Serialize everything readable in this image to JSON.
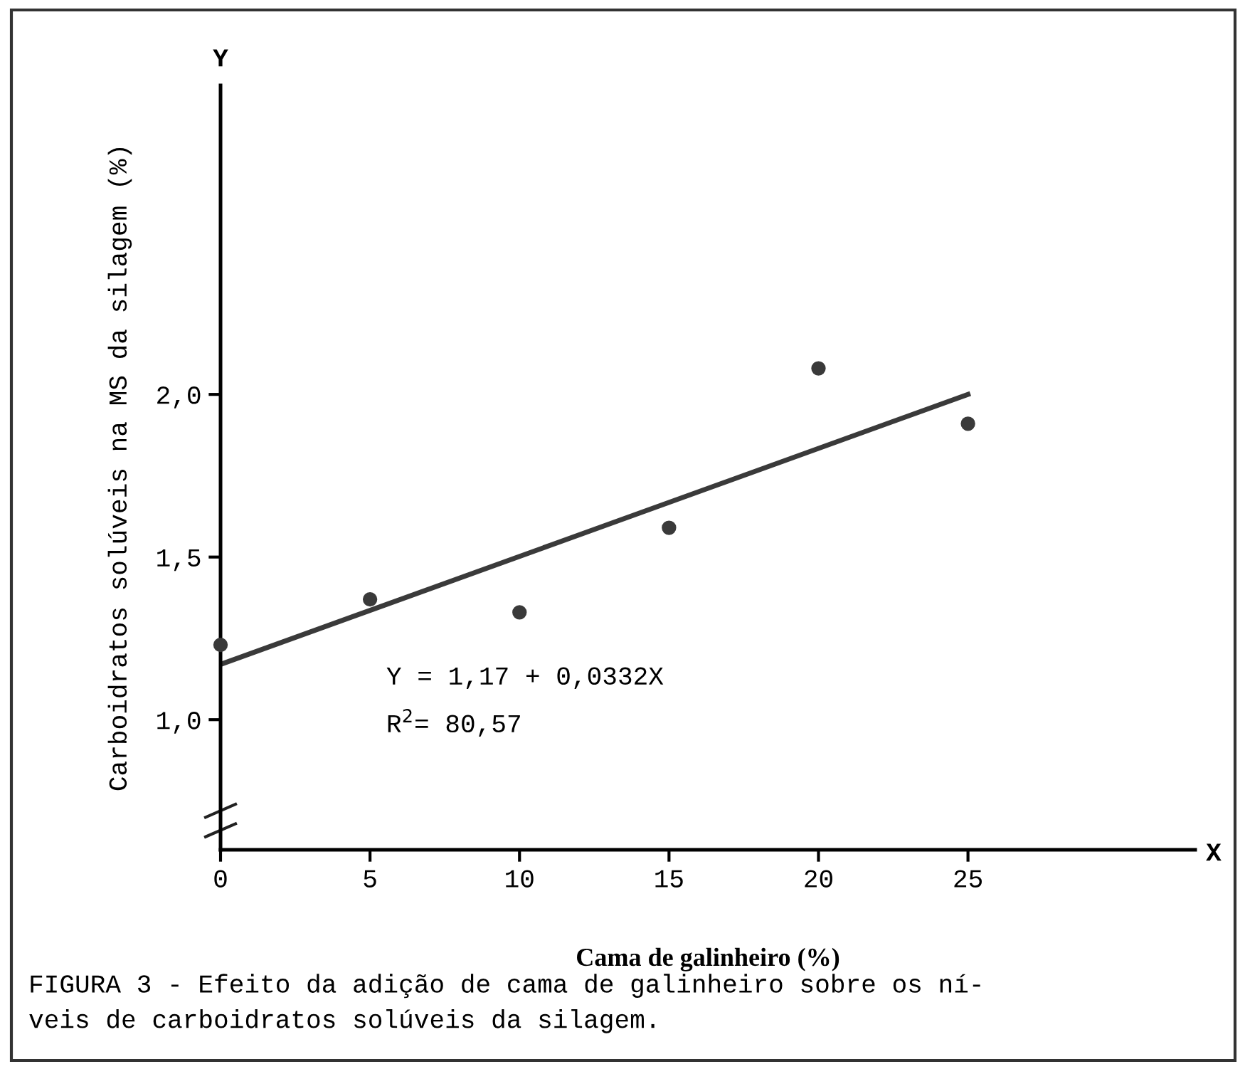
{
  "chart_data": {
    "type": "scatter",
    "xlabel": "Cama de galinheiro (%)",
    "ylabel": "Carboidratos solúveis na MS da silagem (%)",
    "series": [
      {
        "color": "#3a3a3a",
        "x": [
          0,
          5,
          10,
          15,
          20,
          25
        ],
        "values": [
          1.23,
          1.37,
          1.33,
          1.59,
          2.08,
          1.91
        ],
        "marker": "circle"
      },
      {
        "type": "line",
        "color": "#3a3a3a",
        "x": [
          0,
          25
        ],
        "values": [
          1.17,
          2.0
        ],
        "line_style": "solid"
      }
    ],
    "xlim": [
      0,
      32.6
    ],
    "ylim": [
      0.6,
      2.95
    ],
    "xticks": [
      0,
      5,
      10,
      15,
      20,
      25
    ],
    "yticks": [
      {
        "value": 1.0,
        "label": "1,0"
      },
      {
        "value": 1.5,
        "label": "1,5"
      },
      {
        "value": 2.0,
        "label": "2,0"
      }
    ],
    "grid": false,
    "legend": false,
    "annotations": [
      "Y = 1,17 + 0,0332X",
      "R$^{2}$= 80,57",
      "Y",
      "X",
      "FIGURA 3 - Efeito da adição de cama de galinheiro sobre os ní-\nveis de carboidratos solúveis da silagem."
    ]
  }
}
